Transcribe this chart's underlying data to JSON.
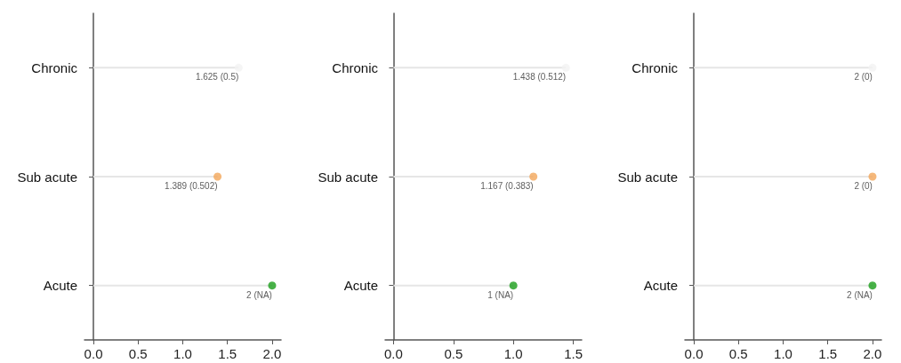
{
  "chart_data": [
    {
      "type": "lollipop",
      "orientation": "horizontal",
      "categories": [
        "Chronic",
        "Sub acute",
        "Acute"
      ],
      "values": [
        1.625,
        1.389,
        2
      ],
      "colors": [
        "#f2f2f2",
        "#f2a65a",
        "#1a9e1a"
      ],
      "value_labels": [
        "1.625 (0.5)",
        "1.389 (0.502)",
        "2 (NA)"
      ],
      "xlim": [
        -0.1,
        2.1
      ],
      "xticks": [
        {
          "value": 0,
          "label": "0.0"
        },
        {
          "value": 0.5,
          "label": "0.5"
        },
        {
          "value": 1,
          "label": "1.0"
        },
        {
          "value": 1.5,
          "label": "1.5"
        },
        {
          "value": 2,
          "label": "2.0"
        }
      ],
      "grid": false,
      "marker": "circle"
    },
    {
      "type": "lollipop",
      "orientation": "horizontal",
      "categories": [
        "Chronic",
        "Sub acute",
        "Acute"
      ],
      "values": [
        1.438,
        1.167,
        1
      ],
      "colors": [
        "#f2f2f2",
        "#f2a65a",
        "#1a9e1a"
      ],
      "value_labels": [
        "1.438 (0.512)",
        "1.167 (0.383)",
        "1 (NA)"
      ],
      "xlim": [
        -0.07,
        1.57
      ],
      "xticks": [
        {
          "value": 0,
          "label": "0.0"
        },
        {
          "value": 0.5,
          "label": "0.5"
        },
        {
          "value": 1,
          "label": "1.0"
        },
        {
          "value": 1.5,
          "label": "1.5"
        }
      ],
      "grid": false,
      "marker": "circle"
    },
    {
      "type": "lollipop",
      "orientation": "horizontal",
      "categories": [
        "Chronic",
        "Sub acute",
        "Acute"
      ],
      "values": [
        2,
        2,
        2
      ],
      "colors": [
        "#f2f2f2",
        "#f2a65a",
        "#1a9e1a"
      ],
      "value_labels": [
        "2 (0)",
        "2 (0)",
        "2 (NA)"
      ],
      "xlim": [
        -0.1,
        2.1
      ],
      "xticks": [
        {
          "value": 0,
          "label": "0.0"
        },
        {
          "value": 0.5,
          "label": "0.5"
        },
        {
          "value": 1,
          "label": "1.0"
        },
        {
          "value": 1.5,
          "label": "1.5"
        },
        {
          "value": 2,
          "label": "2.0"
        }
      ],
      "grid": false,
      "marker": "circle"
    }
  ]
}
